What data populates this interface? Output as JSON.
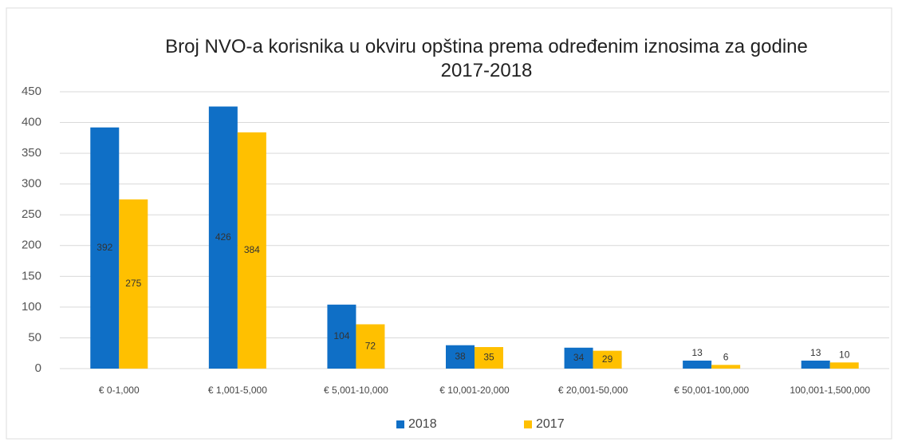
{
  "chart_data": {
    "type": "bar",
    "title": "Broj NVO-a korisnika u okviru opština prema određenim iznosima za godine 2017-2018",
    "categories": [
      "€ 0-1,000",
      "€ 1,001-5,000",
      "€ 5,001-10,000",
      "€ 10,001-20,000",
      "€ 20,001-50,000",
      "€ 50,001-100,000",
      "100,001-1,500,000"
    ],
    "series": [
      {
        "name": "2018",
        "color": "#0f6fc6",
        "values": [
          392,
          426,
          104,
          38,
          34,
          13,
          13
        ]
      },
      {
        "name": "2017",
        "color": "#ffc000",
        "values": [
          275,
          384,
          72,
          35,
          29,
          6,
          10
        ]
      }
    ],
    "ylim": [
      0,
      450
    ],
    "yticks": [
      0,
      50,
      100,
      150,
      200,
      250,
      300,
      350,
      400,
      450
    ],
    "grid": true,
    "legend": "bottom"
  }
}
